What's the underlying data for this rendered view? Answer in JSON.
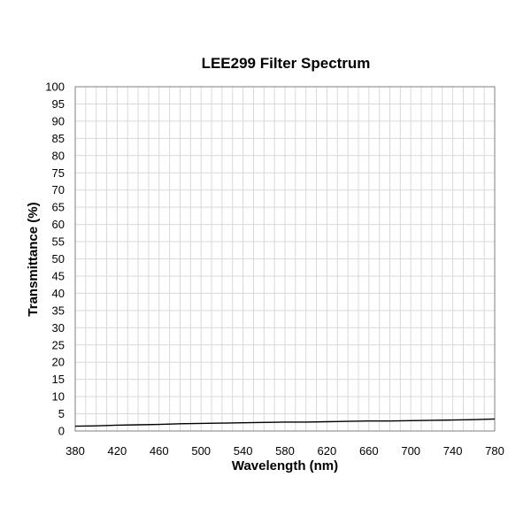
{
  "chart_data": {
    "type": "line",
    "title": "LEE299 Filter Spectrum",
    "xlabel": "Wavelength (nm)",
    "ylabel": "Transmittance (%)",
    "xlim": [
      380,
      780
    ],
    "ylim": [
      0,
      100
    ],
    "x_ticks": [
      380,
      420,
      460,
      500,
      540,
      580,
      620,
      660,
      700,
      740,
      780
    ],
    "y_ticks": [
      0,
      5,
      10,
      15,
      20,
      25,
      30,
      35,
      40,
      45,
      50,
      55,
      60,
      65,
      70,
      75,
      80,
      85,
      90,
      95,
      100
    ],
    "grid": true,
    "line_color": "#000000",
    "series": [
      {
        "x": [
          380,
          400,
          420,
          440,
          460,
          480,
          500,
          520,
          540,
          560,
          580,
          600,
          620,
          640,
          660,
          680,
          700,
          720,
          740,
          760,
          780
        ],
        "y": [
          1.4,
          1.5,
          1.7,
          1.8,
          1.9,
          2.1,
          2.2,
          2.3,
          2.4,
          2.5,
          2.6,
          2.6,
          2.7,
          2.8,
          2.9,
          2.9,
          3.0,
          3.1,
          3.2,
          3.3,
          3.5
        ]
      }
    ]
  }
}
